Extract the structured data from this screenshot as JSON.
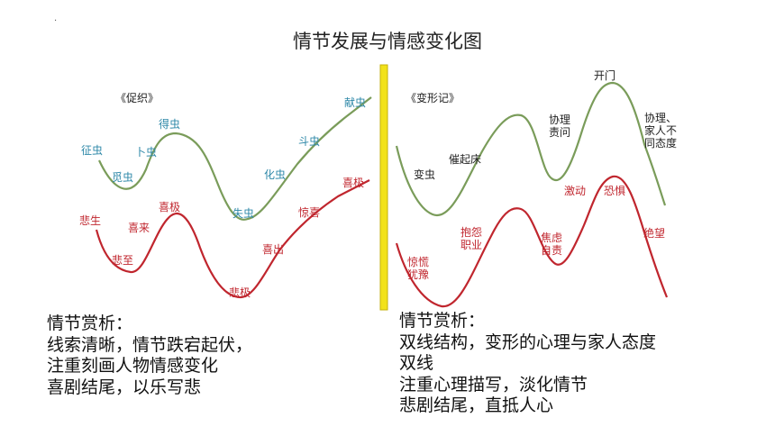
{
  "title": "情节发展与情感变化图",
  "corner_mark": "·",
  "left": {
    "book": "《促织》",
    "top_curve_labels": [
      "征虫",
      "觅虫",
      "卜虫",
      "得虫",
      "失虫",
      "化虫",
      "斗虫",
      "献虫"
    ],
    "bottom_curve_labels": [
      "悲生",
      "悲至",
      "喜来",
      "喜极",
      "悲极",
      "喜出",
      "惊喜",
      "喜极"
    ],
    "analysis": {
      "heading": "情节赏析：",
      "lines": [
        "线索清晰，情节跌宕起伏，",
        "注重刻画人物情感变化",
        "喜剧结尾，以乐写悲"
      ]
    }
  },
  "right": {
    "book": "《变形记》",
    "top_curve_labels": [
      "变虫",
      "催起床",
      "协理\n责问",
      "开门",
      "协理、\n家人不\n同态度"
    ],
    "bottom_curve_labels": [
      "惊慌\n犹豫",
      "抱怨\n职业",
      "焦虑\n自责",
      "激动",
      "恐惧",
      "绝望"
    ],
    "analysis": {
      "heading": "情节赏析：",
      "lines": [
        "双线结构，变形的心理与家人态度",
        "双线",
        "注重心理描写，淡化情节",
        "悲剧结尾，直抵人心"
      ]
    }
  },
  "colors": {
    "divider": "#f2e21a",
    "left_top_curve": "#7a9c5a",
    "left_bottom_curve": "#c0262e",
    "right_top_curve": "#7a9c5a",
    "right_bottom_curve": "#c0262e",
    "teal_text": "#2e88a8",
    "red_text": "#c0262e"
  }
}
